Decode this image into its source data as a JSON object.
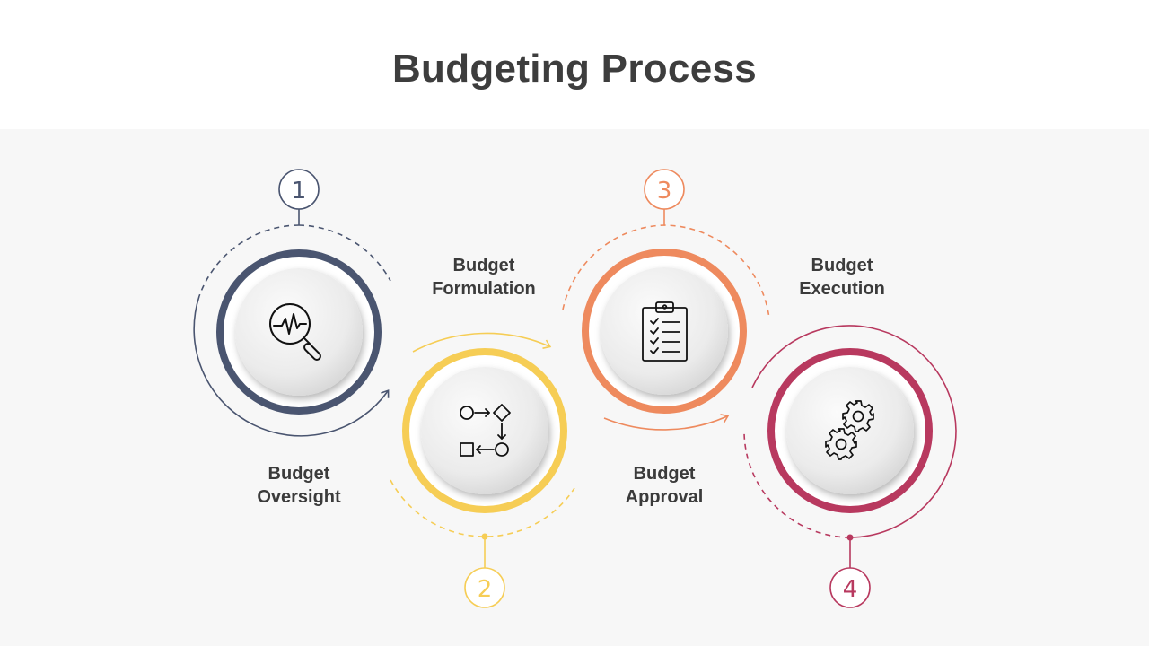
{
  "title": "Budgeting Process",
  "colors": {
    "step1": "#4a5570",
    "step2": "#f6cd55",
    "step3": "#ee8a5e",
    "step4": "#b8395f",
    "text": "#3b3b3b"
  },
  "steps": [
    {
      "number": "1",
      "line1": "Budget",
      "line2": "Oversight",
      "icon": "magnifier-pulse-icon"
    },
    {
      "number": "2",
      "line1": "Budget",
      "line2": "Formulation",
      "icon": "flowchart-icon"
    },
    {
      "number": "3",
      "line1": "Budget",
      "line2": "Approval",
      "icon": "clipboard-checklist-icon"
    },
    {
      "number": "4",
      "line1": "Budget",
      "line2": "Execution",
      "icon": "gears-icon"
    }
  ]
}
